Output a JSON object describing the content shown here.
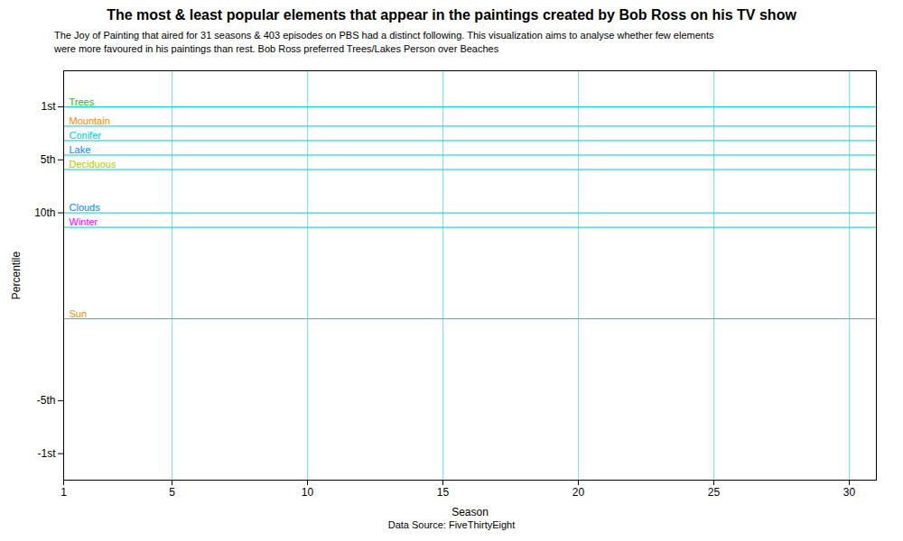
{
  "chart_data": {
    "type": "hline",
    "title": "The most & least popular elements that appear in the paintings created by Bob Ross on his TV show",
    "subtitle": "The Joy of Painting that aired for 31 seasons & 403 episodes on PBS had a distinct following. This visualization aims to analyse whether few elements\nwere more favoured in his paintings than rest. Bob Ross preferred Trees/Lakes Person over Beaches",
    "caption": "Data Source: FiveThirtyEight",
    "xlabel": "Season",
    "ylabel": "Percentile",
    "categories": [
      "Trees",
      "Mountain",
      "Conifer",
      "Lake",
      "Deciduous",
      "Clouds",
      "Winter",
      "Sun"
    ],
    "values": [
      100,
      92,
      86,
      80,
      74,
      56,
      50,
      12
    ],
    "colors": [
      "#00cc00",
      "#ff8800",
      "#00cccc",
      "#0088ff",
      "#aacc00",
      "#0088ff",
      "#ff00ff",
      "#ff8800"
    ],
    "color": "#00cccc",
    "xlim": [
      1,
      31
    ],
    "xticks": [
      1,
      5,
      10,
      15,
      20,
      25,
      30
    ],
    "ylim": [
      -55,
      115
    ],
    "yticks": [
      {
        "value": 100,
        "label": "1st"
      },
      {
        "value": 78,
        "label": "5th"
      },
      {
        "value": 56,
        "label": "10th"
      },
      {
        "value": -22,
        "label": "-5th"
      },
      {
        "value": -44,
        "label": "-1st"
      }
    ],
    "grid": "x"
  }
}
